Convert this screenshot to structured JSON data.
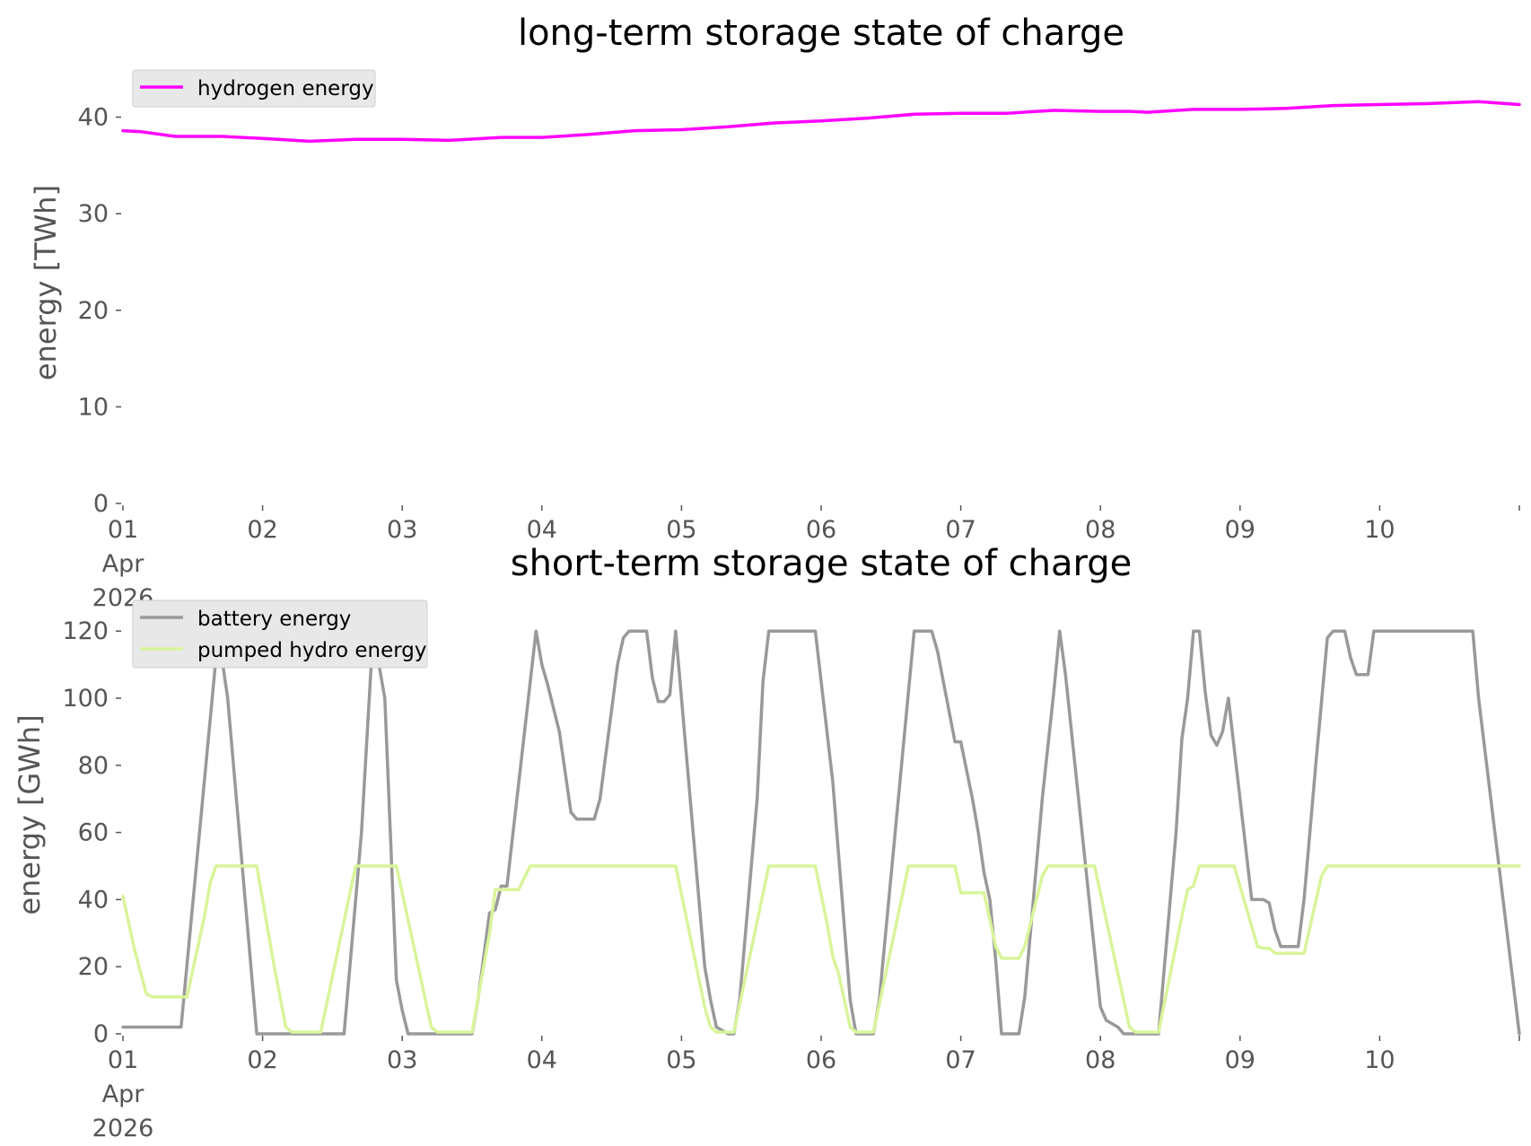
{
  "chart_data": [
    {
      "type": "line",
      "title": "long-term storage state of charge",
      "ylabel": "energy [TWh]",
      "xlabel": "",
      "ylim": [
        0,
        42
      ],
      "xlim": [
        "2026-04-01",
        "2026-04-11"
      ],
      "yticks": [
        0,
        10,
        20,
        30,
        40
      ],
      "xticks": [
        {
          "x": "2026-04-01",
          "label": [
            "01",
            "Apr",
            "2026"
          ]
        },
        {
          "x": "2026-04-02",
          "label": [
            "02"
          ]
        },
        {
          "x": "2026-04-03",
          "label": [
            "03"
          ]
        },
        {
          "x": "2026-04-04",
          "label": [
            "04"
          ]
        },
        {
          "x": "2026-04-05",
          "label": [
            "05"
          ]
        },
        {
          "x": "2026-04-06",
          "label": [
            "06"
          ]
        },
        {
          "x": "2026-04-07",
          "label": [
            "07"
          ]
        },
        {
          "x": "2026-04-08",
          "label": [
            "08"
          ]
        },
        {
          "x": "2026-04-09",
          "label": [
            "09"
          ]
        },
        {
          "x": "2026-04-10",
          "label": [
            "10"
          ]
        }
      ],
      "legend": "top-left",
      "grid": false,
      "series": [
        {
          "name": "hydrogen energy",
          "color": "#ff00ff",
          "points": [
            [
              "2026-04-01 00:00",
              38.6
            ],
            [
              "2026-04-01 03:00",
              38.5
            ],
            [
              "2026-04-01 09:00",
              38.0
            ],
            [
              "2026-04-01 17:00",
              38.0
            ],
            [
              "2026-04-02 00:00",
              37.8
            ],
            [
              "2026-04-02 08:00",
              37.5
            ],
            [
              "2026-04-02 16:00",
              37.7
            ],
            [
              "2026-04-03 00:00",
              37.7
            ],
            [
              "2026-04-03 08:00",
              37.6
            ],
            [
              "2026-04-03 17:00",
              37.9
            ],
            [
              "2026-04-04 00:00",
              37.9
            ],
            [
              "2026-04-04 08:00",
              38.2
            ],
            [
              "2026-04-04 16:00",
              38.6
            ],
            [
              "2026-04-05 00:00",
              38.7
            ],
            [
              "2026-04-05 08:00",
              39.0
            ],
            [
              "2026-04-05 16:00",
              39.4
            ],
            [
              "2026-04-06 00:00",
              39.6
            ],
            [
              "2026-04-06 08:00",
              39.9
            ],
            [
              "2026-04-06 16:00",
              40.3
            ],
            [
              "2026-04-07 00:00",
              40.4
            ],
            [
              "2026-04-07 08:00",
              40.4
            ],
            [
              "2026-04-07 16:00",
              40.7
            ],
            [
              "2026-04-08 00:00",
              40.6
            ],
            [
              "2026-04-08 05:00",
              40.6
            ],
            [
              "2026-04-08 08:00",
              40.5
            ],
            [
              "2026-04-08 16:00",
              40.8
            ],
            [
              "2026-04-09 00:00",
              40.8
            ],
            [
              "2026-04-09 08:00",
              40.9
            ],
            [
              "2026-04-09 16:00",
              41.2
            ],
            [
              "2026-04-10 00:00",
              41.3
            ],
            [
              "2026-04-10 08:00",
              41.4
            ],
            [
              "2026-04-10 17:00",
              41.6
            ],
            [
              "2026-04-11 00:00",
              41.3
            ]
          ]
        }
      ]
    },
    {
      "type": "line",
      "title": "short-term storage state of charge",
      "ylabel": "energy [GWh]",
      "xlabel": "",
      "ylim": [
        0,
        123
      ],
      "xlim": [
        "2026-04-01",
        "2026-04-11"
      ],
      "yticks": [
        0,
        20,
        40,
        60,
        80,
        100,
        120
      ],
      "xticks": [
        {
          "x": "2026-04-01",
          "label": [
            "01",
            "Apr",
            "2026"
          ]
        },
        {
          "x": "2026-04-02",
          "label": [
            "02"
          ]
        },
        {
          "x": "2026-04-03",
          "label": [
            "03"
          ]
        },
        {
          "x": "2026-04-04",
          "label": [
            "04"
          ]
        },
        {
          "x": "2026-04-05",
          "label": [
            "05"
          ]
        },
        {
          "x": "2026-04-06",
          "label": [
            "06"
          ]
        },
        {
          "x": "2026-04-07",
          "label": [
            "07"
          ]
        },
        {
          "x": "2026-04-08",
          "label": [
            "08"
          ]
        },
        {
          "x": "2026-04-09",
          "label": [
            "09"
          ]
        },
        {
          "x": "2026-04-10",
          "label": [
            "10"
          ]
        }
      ],
      "legend": "top-left",
      "grid": false,
      "series": [
        {
          "name": "battery energy",
          "color": "#999999",
          "points": [
            [
              "2026-04-01 00:00",
              2
            ],
            [
              "2026-04-01 10:00",
              2
            ],
            [
              "2026-04-01 16:00",
              112
            ],
            [
              "2026-04-01 17:00",
              112
            ],
            [
              "2026-04-01 18:00",
              100
            ],
            [
              "2026-04-01 23:00",
              0
            ],
            [
              "2026-04-02 14:00",
              0
            ],
            [
              "2026-04-02 17:00",
              60
            ],
            [
              "2026-04-02 19:00",
              120
            ],
            [
              "2026-04-02 21:00",
              100
            ],
            [
              "2026-04-02 23:00",
              16
            ],
            [
              "2026-04-03 00:00",
              7
            ],
            [
              "2026-04-03 01:00",
              0
            ],
            [
              "2026-04-03 12:00",
              0
            ],
            [
              "2026-04-03 13:00",
              10
            ],
            [
              "2026-04-03 15:00",
              36
            ],
            [
              "2026-04-03 16:00",
              37
            ],
            [
              "2026-04-03 17:00",
              44
            ],
            [
              "2026-04-03 18:00",
              44
            ],
            [
              "2026-04-03 23:00",
              120
            ],
            [
              "2026-04-04 00:00",
              110
            ],
            [
              "2026-04-04 01:00",
              104
            ],
            [
              "2026-04-04 03:00",
              90
            ],
            [
              "2026-04-04 05:00",
              66
            ],
            [
              "2026-04-04 06:00",
              64
            ],
            [
              "2026-04-04 09:00",
              64
            ],
            [
              "2026-04-04 10:00",
              70
            ],
            [
              "2026-04-04 13:00",
              110
            ],
            [
              "2026-04-04 14:00",
              118
            ],
            [
              "2026-04-04 15:00",
              120
            ],
            [
              "2026-04-04 18:00",
              120
            ],
            [
              "2026-04-04 19:00",
              106
            ],
            [
              "2026-04-04 20:00",
              99
            ],
            [
              "2026-04-04 21:00",
              99
            ],
            [
              "2026-04-04 22:00",
              101
            ],
            [
              "2026-04-04 23:00",
              120
            ],
            [
              "2026-04-05 04:00",
              20
            ],
            [
              "2026-04-05 05:00",
              10
            ],
            [
              "2026-04-05 06:00",
              2
            ],
            [
              "2026-04-05 08:00",
              0
            ],
            [
              "2026-04-05 09:00",
              0
            ],
            [
              "2026-04-05 10:00",
              10
            ],
            [
              "2026-04-05 13:00",
              70
            ],
            [
              "2026-04-05 14:00",
              105
            ],
            [
              "2026-04-05 15:00",
              120
            ],
            [
              "2026-04-05 23:00",
              120
            ],
            [
              "2026-04-06 02:00",
              75
            ],
            [
              "2026-04-06 05:00",
              10
            ],
            [
              "2026-04-06 06:00",
              0
            ],
            [
              "2026-04-06 09:00",
              0
            ],
            [
              "2026-04-06 10:00",
              10
            ],
            [
              "2026-04-06 16:00",
              120
            ],
            [
              "2026-04-06 17:00",
              120
            ],
            [
              "2026-04-06 19:00",
              120
            ],
            [
              "2026-04-06 20:00",
              114
            ],
            [
              "2026-04-06 23:00",
              87
            ],
            [
              "2026-04-07 00:00",
              87
            ],
            [
              "2026-04-07 02:00",
              70
            ],
            [
              "2026-04-07 03:00",
              60
            ],
            [
              "2026-04-07 04:00",
              48
            ],
            [
              "2026-04-07 05:00",
              40
            ],
            [
              "2026-04-07 06:00",
              22
            ],
            [
              "2026-04-07 07:00",
              0
            ],
            [
              "2026-04-07 10:00",
              0
            ],
            [
              "2026-04-07 11:00",
              11
            ],
            [
              "2026-04-07 14:00",
              70
            ],
            [
              "2026-04-07 15:00",
              86
            ],
            [
              "2026-04-07 16:00",
              102
            ],
            [
              "2026-04-07 17:00",
              120
            ],
            [
              "2026-04-07 18:00",
              107
            ],
            [
              "2026-04-08 00:00",
              8
            ],
            [
              "2026-04-08 01:00",
              4
            ],
            [
              "2026-04-08 02:00",
              3
            ],
            [
              "2026-04-08 03:00",
              2
            ],
            [
              "2026-04-08 04:00",
              0
            ],
            [
              "2026-04-08 10:00",
              0
            ],
            [
              "2026-04-08 11:00",
              20
            ],
            [
              "2026-04-08 13:00",
              60
            ],
            [
              "2026-04-08 14:00",
              88
            ],
            [
              "2026-04-08 15:00",
              100
            ],
            [
              "2026-04-08 16:00",
              120
            ],
            [
              "2026-04-08 17:00",
              120
            ],
            [
              "2026-04-08 18:00",
              102
            ],
            [
              "2026-04-08 19:00",
              89
            ],
            [
              "2026-04-08 20:00",
              86
            ],
            [
              "2026-04-08 21:00",
              90
            ],
            [
              "2026-04-08 22:00",
              100
            ],
            [
              "2026-04-09 02:00",
              40
            ],
            [
              "2026-04-09 04:00",
              40
            ],
            [
              "2026-04-09 05:00",
              39
            ],
            [
              "2026-04-09 06:00",
              31
            ],
            [
              "2026-04-09 07:00",
              26
            ],
            [
              "2026-04-09 10:00",
              26
            ],
            [
              "2026-04-09 11:00",
              40
            ],
            [
              "2026-04-09 13:00",
              80
            ],
            [
              "2026-04-09 15:00",
              118
            ],
            [
              "2026-04-09 16:00",
              120
            ],
            [
              "2026-04-09 18:00",
              120
            ],
            [
              "2026-04-09 19:00",
              112
            ],
            [
              "2026-04-09 20:00",
              107
            ],
            [
              "2026-04-09 22:00",
              107
            ],
            [
              "2026-04-09 23:00",
              120
            ],
            [
              "2026-04-10 16:00",
              120
            ],
            [
              "2026-04-10 17:00",
              100
            ],
            [
              "2026-04-11 00:00",
              0
            ]
          ]
        },
        {
          "name": "pumped hydro energy",
          "color": "#d8f59a",
          "points": [
            [
              "2026-04-01 00:00",
              41
            ],
            [
              "2026-04-01 02:00",
              25
            ],
            [
              "2026-04-01 04:00",
              12
            ],
            [
              "2026-04-01 05:00",
              11
            ],
            [
              "2026-04-01 11:00",
              11
            ],
            [
              "2026-04-01 14:00",
              35
            ],
            [
              "2026-04-01 15:00",
              45
            ],
            [
              "2026-04-01 16:00",
              50
            ],
            [
              "2026-04-01 23:00",
              50
            ],
            [
              "2026-04-02 02:00",
              20
            ],
            [
              "2026-04-02 04:00",
              2
            ],
            [
              "2026-04-02 05:00",
              0.5
            ],
            [
              "2026-04-02 10:00",
              0.5
            ],
            [
              "2026-04-02 16:00",
              50
            ],
            [
              "2026-04-02 23:00",
              50
            ],
            [
              "2026-04-03 05:00",
              2
            ],
            [
              "2026-04-03 06:00",
              0.5
            ],
            [
              "2026-04-03 12:00",
              0.5
            ],
            [
              "2026-04-03 15:00",
              30
            ],
            [
              "2026-04-03 16:00",
              43
            ],
            [
              "2026-04-03 20:00",
              43
            ],
            [
              "2026-04-03 22:00",
              50
            ],
            [
              "2026-04-04 23:00",
              50
            ],
            [
              "2026-04-05 04:00",
              8
            ],
            [
              "2026-04-05 05:00",
              2
            ],
            [
              "2026-04-05 06:00",
              0.5
            ],
            [
              "2026-04-05 09:00",
              0.5
            ],
            [
              "2026-04-05 15:00",
              50
            ],
            [
              "2026-04-05 23:00",
              50
            ],
            [
              "2026-04-06 01:00",
              33
            ],
            [
              "2026-04-06 02:00",
              23
            ],
            [
              "2026-04-06 03:00",
              18
            ],
            [
              "2026-04-06 05:00",
              2
            ],
            [
              "2026-04-06 06:00",
              0.5
            ],
            [
              "2026-04-06 09:00",
              0.5
            ],
            [
              "2026-04-06 15:00",
              50
            ],
            [
              "2026-04-06 23:00",
              50
            ],
            [
              "2026-04-07 00:00",
              42
            ],
            [
              "2026-04-07 04:00",
              42
            ],
            [
              "2026-04-07 06:00",
              26
            ],
            [
              "2026-04-07 07:00",
              22.5
            ],
            [
              "2026-04-07 10:00",
              22.5
            ],
            [
              "2026-04-07 11:00",
              26
            ],
            [
              "2026-04-07 14:00",
              47
            ],
            [
              "2026-04-07 15:00",
              50
            ],
            [
              "2026-04-07 23:00",
              50
            ],
            [
              "2026-04-08 05:00",
              2
            ],
            [
              "2026-04-08 06:00",
              0.5
            ],
            [
              "2026-04-08 10:00",
              0.5
            ],
            [
              "2026-04-08 14:00",
              35
            ],
            [
              "2026-04-08 15:00",
              43
            ],
            [
              "2026-04-08 16:00",
              44
            ],
            [
              "2026-04-08 17:00",
              50
            ],
            [
              "2026-04-08 23:00",
              50
            ],
            [
              "2026-04-09 02:00",
              32
            ],
            [
              "2026-04-09 03:00",
              26
            ],
            [
              "2026-04-09 04:00",
              25.5
            ],
            [
              "2026-04-09 05:00",
              25.5
            ],
            [
              "2026-04-09 06:00",
              24
            ],
            [
              "2026-04-09 11:00",
              24
            ],
            [
              "2026-04-09 14:00",
              47
            ],
            [
              "2026-04-09 15:00",
              50
            ],
            [
              "2026-04-11 00:00",
              50
            ]
          ]
        }
      ]
    }
  ]
}
